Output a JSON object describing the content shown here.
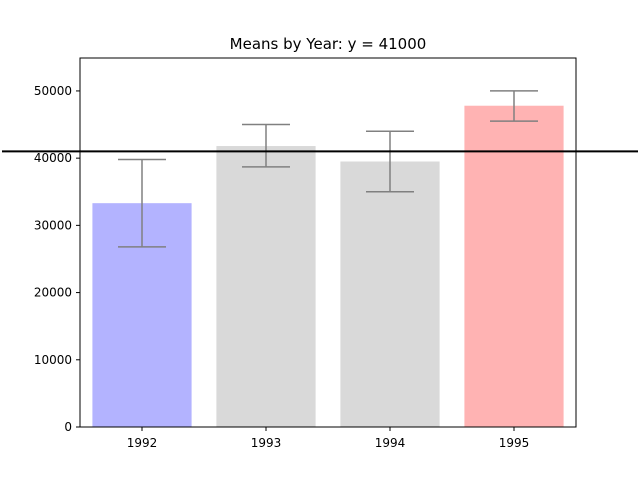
{
  "chart_data": {
    "type": "bar",
    "title": "Means by Year: y = 41000",
    "xlabel": "",
    "ylabel": "",
    "categories": [
      "1992",
      "1993",
      "1994",
      "1995"
    ],
    "values": [
      33300,
      41800,
      39500,
      47800
    ],
    "error_low": [
      26800,
      38700,
      35000,
      45500
    ],
    "error_high": [
      39800,
      45000,
      44000,
      50000
    ],
    "bar_colors": [
      "#b3b3ff",
      "#d9d9d9",
      "#d9d9d9",
      "#ffb3b3"
    ],
    "errorbar_color": "#808080",
    "reference_line": {
      "y": 41000,
      "color": "#000000"
    },
    "ylim": [
      0,
      54900
    ],
    "yticks": [
      0,
      10000,
      20000,
      30000,
      40000,
      50000
    ],
    "grid": false,
    "legend": "none"
  }
}
